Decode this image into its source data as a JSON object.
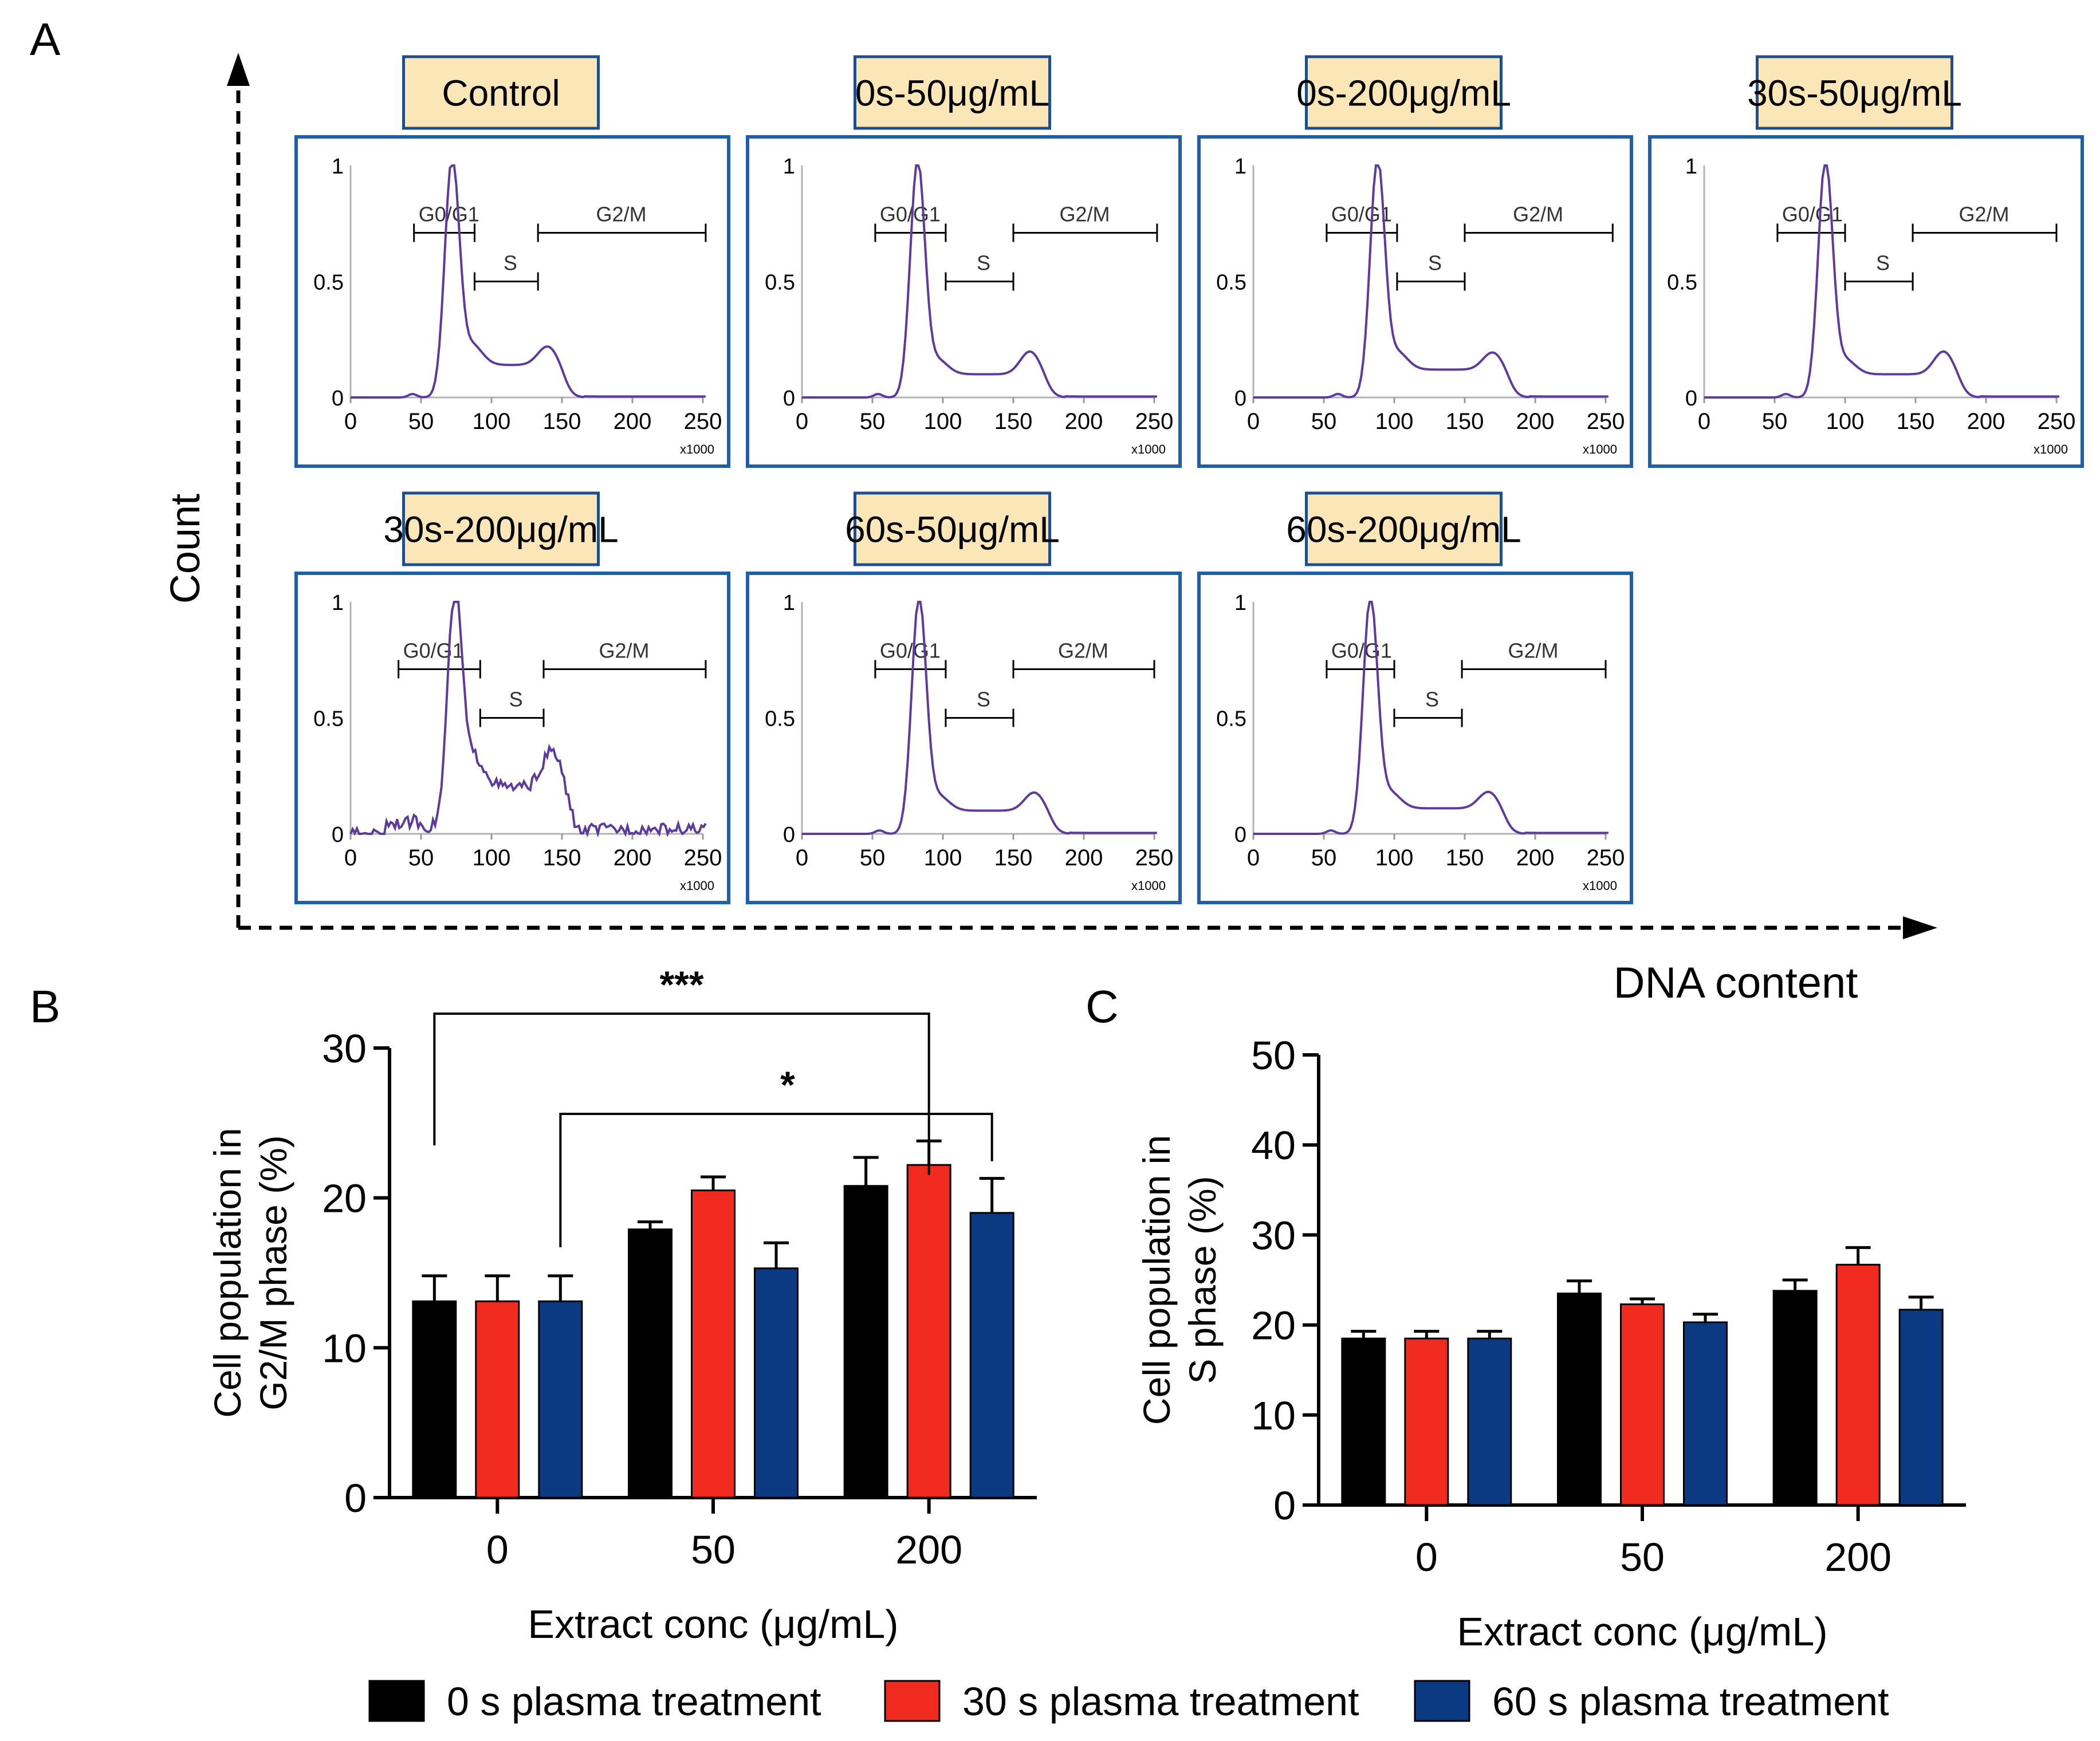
{
  "panels": {
    "a": "A",
    "b": "B",
    "c": "C"
  },
  "panel_a": {
    "y_label": "Count",
    "x_label": "DNA content",
    "gates": {
      "g0g1": "G0/G1",
      "s": "S",
      "g2m": "G2/M"
    },
    "x_ticks": [
      "0",
      "50",
      "100",
      "150",
      "200",
      "250"
    ],
    "y_ticks": [
      "0",
      "0.5",
      "1"
    ],
    "x_multiplier": "x1000",
    "histograms": [
      {
        "title": "Control",
        "peak_x": 72,
        "gates": [
          [
            45,
            88
          ],
          [
            88,
            133
          ],
          [
            133,
            252
          ]
        ],
        "g2_peak": 140,
        "s_level": 0.14,
        "g2_height": 0.18,
        "noisy": false
      },
      {
        "title": "0s-50μg/mL",
        "peak_x": 82,
        "gates": [
          [
            52,
            102
          ],
          [
            102,
            150
          ],
          [
            150,
            252
          ]
        ],
        "g2_peak": 162,
        "s_level": 0.1,
        "g2_height": 0.17,
        "noisy": false
      },
      {
        "title": "0s-200μg/mL",
        "peak_x": 88,
        "gates": [
          [
            52,
            102
          ],
          [
            102,
            150
          ],
          [
            150,
            255
          ]
        ],
        "g2_peak": 170,
        "s_level": 0.12,
        "g2_height": 0.16,
        "noisy": false
      },
      {
        "title": "30s-50μg/mL",
        "peak_x": 86,
        "gates": [
          [
            52,
            100
          ],
          [
            100,
            148
          ],
          [
            148,
            250
          ]
        ],
        "g2_peak": 170,
        "s_level": 0.1,
        "g2_height": 0.17,
        "noisy": false
      },
      {
        "title": "30s-200μg/mL",
        "peak_x": 74,
        "gates": [
          [
            34,
            92
          ],
          [
            92,
            137
          ],
          [
            137,
            252
          ]
        ],
        "g2_peak": 143,
        "s_level": 0.2,
        "g2_height": 0.3,
        "noisy": true
      },
      {
        "title": "60s-50μg/mL",
        "peak_x": 83,
        "gates": [
          [
            52,
            102
          ],
          [
            102,
            150
          ],
          [
            150,
            250
          ]
        ],
        "g2_peak": 165,
        "s_level": 0.1,
        "g2_height": 0.15,
        "noisy": false
      },
      {
        "title": "60s-200μg/mL",
        "peak_x": 83,
        "gates": [
          [
            52,
            100
          ],
          [
            100,
            148
          ],
          [
            148,
            250
          ]
        ],
        "g2_peak": 167,
        "s_level": 0.11,
        "g2_height": 0.15,
        "noisy": false
      }
    ]
  },
  "legend": [
    {
      "label": "0 s plasma treatment",
      "color": "#000000"
    },
    {
      "label": "30 s plasma treatment",
      "color": "#f02a1e"
    },
    {
      "label": "60 s plasma treatment",
      "color": "#0b3a82"
    }
  ],
  "chart_data": [
    {
      "type": "bar",
      "panel": "B",
      "categories": [
        "0",
        "50",
        "200"
      ],
      "series": [
        {
          "name": "0 s plasma treatment",
          "values": [
            13.1,
            17.9,
            20.8
          ],
          "errors": [
            1.7,
            0.5,
            1.9
          ]
        },
        {
          "name": "30 s plasma treatment",
          "values": [
            13.1,
            20.5,
            22.2
          ],
          "errors": [
            1.7,
            0.9,
            1.6
          ]
        },
        {
          "name": "60 s plasma treatment",
          "values": [
            13.1,
            15.3,
            19.0
          ],
          "errors": [
            1.7,
            1.7,
            2.3
          ]
        }
      ],
      "xlabel": "Extract conc (μg/mL)",
      "ylabel_lines": [
        "Cell population in",
        "G2/M phase (%)"
      ],
      "ylim": [
        0,
        30
      ],
      "yticks": [
        0,
        10,
        20,
        30
      ],
      "significance": [
        {
          "label": "***",
          "from": {
            "category": 0,
            "series": 0
          },
          "to": {
            "category": 2,
            "series": 1
          }
        },
        {
          "label": "*",
          "from": {
            "category": 0,
            "series": 2
          },
          "to": {
            "category": 2,
            "series": 2
          }
        }
      ]
    },
    {
      "type": "bar",
      "panel": "C",
      "categories": [
        "0",
        "50",
        "200"
      ],
      "series": [
        {
          "name": "0 s plasma treatment",
          "values": [
            18.5,
            23.5,
            23.8
          ],
          "errors": [
            0.8,
            1.4,
            1.2
          ]
        },
        {
          "name": "30 s plasma treatment",
          "values": [
            18.5,
            22.3,
            26.7
          ],
          "errors": [
            0.8,
            0.6,
            1.9
          ]
        },
        {
          "name": "60 s plasma treatment",
          "values": [
            18.5,
            20.3,
            21.7
          ],
          "errors": [
            0.8,
            0.9,
            1.4
          ]
        }
      ],
      "xlabel": "Extract conc (μg/mL)",
      "ylabel_lines": [
        "Cell population in",
        "S phase (%)"
      ],
      "ylim": [
        0,
        50
      ],
      "yticks": [
        0,
        10,
        20,
        30,
        40,
        50
      ]
    }
  ]
}
